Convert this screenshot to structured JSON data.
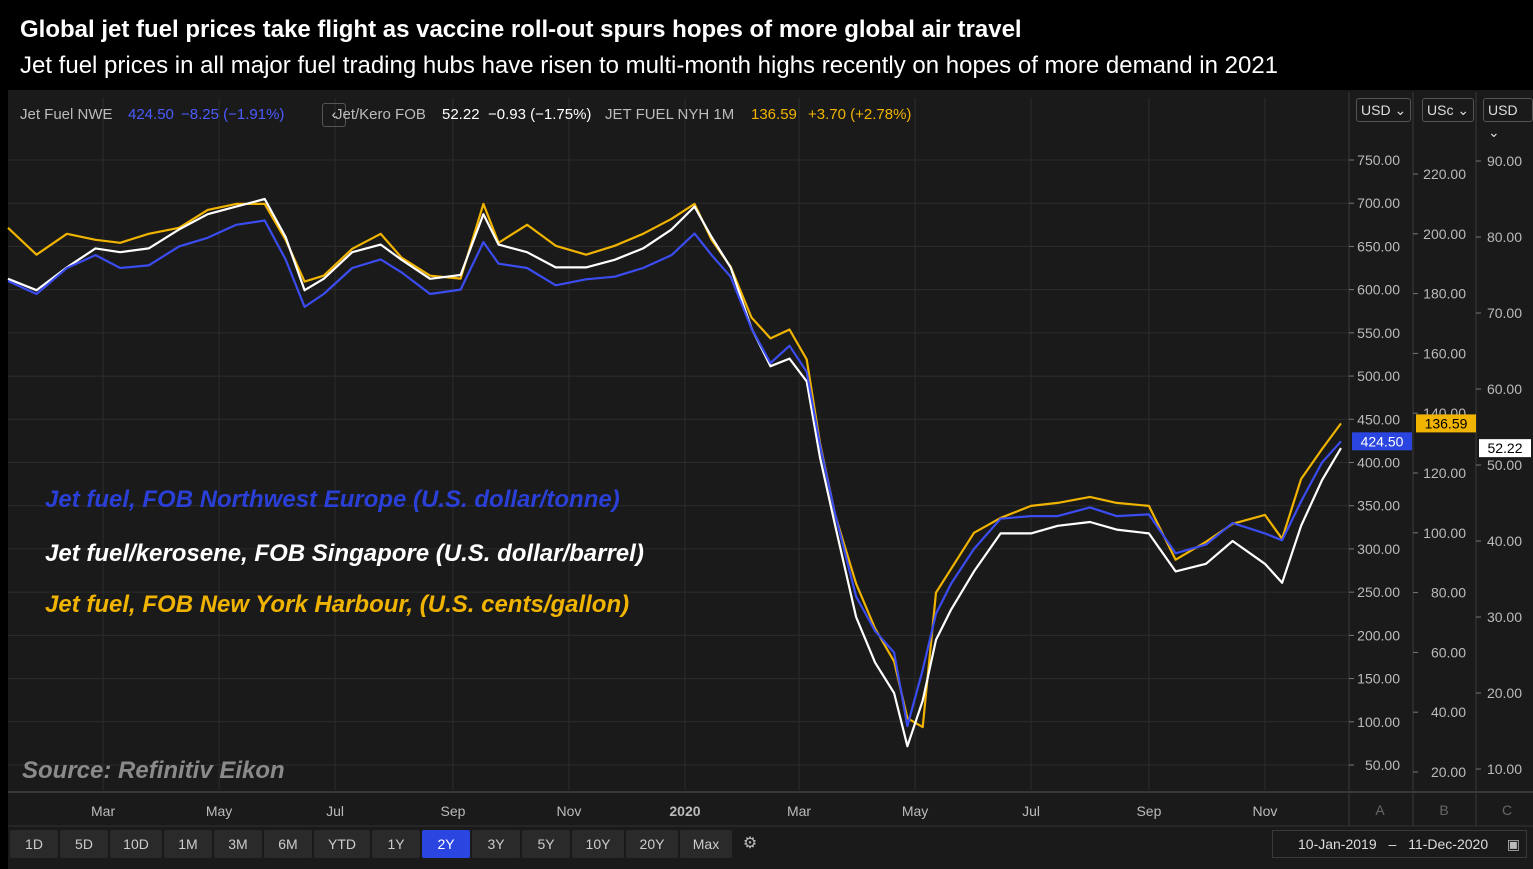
{
  "header": {
    "title": "Global jet fuel prices take flight as vaccine roll-out spurs hopes of more global air travel",
    "subtitle": "Jet fuel prices in all major fuel trading hubs have risen to multi-month highs recently on hopes of more demand in 2021"
  },
  "legend": {
    "nwe": {
      "name": "Jet Fuel NWE",
      "value": "424.50",
      "change": "−8.25 (−1.91%)"
    },
    "nav": "‹",
    "sg": {
      "name": "Jet/Kero FOB",
      "value": "52.22",
      "change": "−0.93 (−1.75%)"
    },
    "nyh": {
      "name": "JET FUEL NYH 1M",
      "value": "136.59",
      "change": "+3.70 (+2.78%)"
    }
  },
  "axes": {
    "A": {
      "unit": "USD",
      "ticks": [
        "750.00",
        "700.00",
        "650.00",
        "600.00",
        "550.00",
        "500.00",
        "450.00",
        "400.00",
        "350.00",
        "300.00",
        "250.00",
        "200.00",
        "150.00",
        "100.00",
        "50.00"
      ],
      "label": "A",
      "last": "424.50"
    },
    "B": {
      "unit": "USc",
      "ticks": [
        "220.00",
        "200.00",
        "180.00",
        "160.00",
        "140.00",
        "120.00",
        "100.00",
        "80.00",
        "60.00",
        "40.00",
        "20.00"
      ],
      "label": "B",
      "last": "136.59"
    },
    "C": {
      "unit": "USD",
      "ticks": [
        "90.00",
        "80.00",
        "70.00",
        "60.00",
        "50.00",
        "40.00",
        "30.00",
        "20.00",
        "10.00"
      ],
      "label": "C",
      "last": "52.22"
    },
    "x_ticks": [
      "Mar",
      "May",
      "Jul",
      "Sep",
      "Nov",
      "2020",
      "Mar",
      "May",
      "Jul",
      "Sep",
      "Nov"
    ]
  },
  "annotations": {
    "nwe": "Jet fuel, FOB Northwest Europe (U.S. dollar/tonne)",
    "sg": "Jet fuel/kerosene, FOB Singapore (U.S. dollar/barrel)",
    "nyh": "Jet fuel, FOB New York Harbour, (U.S. cents/gallon)",
    "source": "Source: Refinitiv Eikon"
  },
  "toolbar": {
    "ranges": [
      "1D",
      "5D",
      "10D",
      "1M",
      "3M",
      "6M",
      "YTD",
      "1Y",
      "2Y",
      "3Y",
      "5Y",
      "10Y",
      "20Y",
      "Max"
    ],
    "active_range": "2Y",
    "date_from": "10-Jan-2019",
    "dash": "–",
    "date_to": "11-Dec-2020"
  },
  "colors": {
    "nwe": "#3b4cf0",
    "sg": "#ffffff",
    "nyh": "#f0b400",
    "nwe_text": "#2a3fd6",
    "nyh_text": "#f0b400"
  },
  "chart_data": {
    "type": "line",
    "x_type": "date",
    "x_range": [
      "2019-01-10",
      "2020-12-11"
    ],
    "series": [
      {
        "name": "Jet Fuel NWE",
        "unit": "U.S. dollar/tonne",
        "axis": "A",
        "ylim": [
          30,
          800
        ],
        "points": [
          [
            "2019-01-10",
            610
          ],
          [
            "2019-01-25",
            595
          ],
          [
            "2019-02-10",
            625
          ],
          [
            "2019-02-25",
            640
          ],
          [
            "2019-03-10",
            625
          ],
          [
            "2019-03-25",
            628
          ],
          [
            "2019-04-10",
            650
          ],
          [
            "2019-04-25",
            660
          ],
          [
            "2019-05-10",
            675
          ],
          [
            "2019-05-25",
            680
          ],
          [
            "2019-06-05",
            635
          ],
          [
            "2019-06-15",
            580
          ],
          [
            "2019-06-25",
            595
          ],
          [
            "2019-07-10",
            625
          ],
          [
            "2019-07-25",
            635
          ],
          [
            "2019-08-05",
            620
          ],
          [
            "2019-08-20",
            595
          ],
          [
            "2019-09-05",
            600
          ],
          [
            "2019-09-17",
            655
          ],
          [
            "2019-09-25",
            630
          ],
          [
            "2019-10-10",
            625
          ],
          [
            "2019-10-25",
            605
          ],
          [
            "2019-11-10",
            612
          ],
          [
            "2019-11-25",
            615
          ],
          [
            "2019-12-10",
            625
          ],
          [
            "2019-12-25",
            640
          ],
          [
            "2020-01-06",
            665
          ],
          [
            "2020-01-15",
            640
          ],
          [
            "2020-01-25",
            615
          ],
          [
            "2020-02-05",
            555
          ],
          [
            "2020-02-15",
            515
          ],
          [
            "2020-02-25",
            535
          ],
          [
            "2020-03-05",
            505
          ],
          [
            "2020-03-12",
            420
          ],
          [
            "2020-03-20",
            340
          ],
          [
            "2020-03-31",
            245
          ],
          [
            "2020-04-10",
            205
          ],
          [
            "2020-04-20",
            180
          ],
          [
            "2020-04-27",
            95
          ],
          [
            "2020-05-05",
            160
          ],
          [
            "2020-05-12",
            225
          ],
          [
            "2020-05-20",
            260
          ],
          [
            "2020-06-01",
            300
          ],
          [
            "2020-06-15",
            335
          ],
          [
            "2020-07-01",
            338
          ],
          [
            "2020-07-15",
            338
          ],
          [
            "2020-08-01",
            348
          ],
          [
            "2020-08-15",
            338
          ],
          [
            "2020-09-01",
            340
          ],
          [
            "2020-09-15",
            295
          ],
          [
            "2020-10-01",
            305
          ],
          [
            "2020-10-15",
            330
          ],
          [
            "2020-11-01",
            318
          ],
          [
            "2020-11-10",
            310
          ],
          [
            "2020-11-20",
            355
          ],
          [
            "2020-12-01",
            400
          ],
          [
            "2020-12-11",
            424.5
          ]
        ]
      },
      {
        "name": "Jet/Kero FOB",
        "unit": "U.S. dollar/barrel",
        "axis": "C",
        "ylim": [
          5,
          95
        ],
        "points": [
          [
            "2019-01-10",
            74.5
          ],
          [
            "2019-01-25",
            73
          ],
          [
            "2019-02-10",
            76
          ],
          [
            "2019-02-25",
            78.5
          ],
          [
            "2019-03-10",
            78
          ],
          [
            "2019-03-25",
            78.5
          ],
          [
            "2019-04-10",
            81
          ],
          [
            "2019-04-25",
            83
          ],
          [
            "2019-05-10",
            84
          ],
          [
            "2019-05-25",
            85
          ],
          [
            "2019-06-05",
            80
          ],
          [
            "2019-06-15",
            73
          ],
          [
            "2019-06-25",
            74.5
          ],
          [
            "2019-07-10",
            78
          ],
          [
            "2019-07-25",
            79
          ],
          [
            "2019-08-05",
            77
          ],
          [
            "2019-08-20",
            74.5
          ],
          [
            "2019-09-05",
            75
          ],
          [
            "2019-09-17",
            83
          ],
          [
            "2019-09-25",
            79
          ],
          [
            "2019-10-10",
            78
          ],
          [
            "2019-10-25",
            76
          ],
          [
            "2019-11-10",
            76
          ],
          [
            "2019-11-25",
            77
          ],
          [
            "2019-12-10",
            78.5
          ],
          [
            "2019-12-25",
            81
          ],
          [
            "2020-01-06",
            84
          ],
          [
            "2020-01-15",
            80
          ],
          [
            "2020-01-25",
            76
          ],
          [
            "2020-02-05",
            68
          ],
          [
            "2020-02-15",
            63
          ],
          [
            "2020-02-25",
            64
          ],
          [
            "2020-03-05",
            61
          ],
          [
            "2020-03-12",
            51
          ],
          [
            "2020-03-20",
            42
          ],
          [
            "2020-03-31",
            30
          ],
          [
            "2020-04-10",
            24
          ],
          [
            "2020-04-20",
            20
          ],
          [
            "2020-04-27",
            13
          ],
          [
            "2020-05-05",
            19
          ],
          [
            "2020-05-12",
            27
          ],
          [
            "2020-05-20",
            31
          ],
          [
            "2020-06-01",
            36
          ],
          [
            "2020-06-15",
            41
          ],
          [
            "2020-07-01",
            41
          ],
          [
            "2020-07-15",
            42
          ],
          [
            "2020-08-01",
            42.5
          ],
          [
            "2020-08-15",
            41.5
          ],
          [
            "2020-09-01",
            41
          ],
          [
            "2020-09-15",
            36
          ],
          [
            "2020-10-01",
            37
          ],
          [
            "2020-10-15",
            40
          ],
          [
            "2020-11-01",
            37
          ],
          [
            "2020-11-10",
            34.5
          ],
          [
            "2020-11-20",
            42
          ],
          [
            "2020-12-01",
            48
          ],
          [
            "2020-12-11",
            52.22
          ]
        ]
      },
      {
        "name": "JET FUEL NYH 1M",
        "unit": "U.S. cents/gallon",
        "axis": "B",
        "ylim": [
          15,
          235
        ],
        "points": [
          [
            "2019-01-10",
            202
          ],
          [
            "2019-01-25",
            193
          ],
          [
            "2019-02-10",
            200
          ],
          [
            "2019-02-25",
            198
          ],
          [
            "2019-03-10",
            197
          ],
          [
            "2019-03-25",
            200
          ],
          [
            "2019-04-10",
            202
          ],
          [
            "2019-04-25",
            208
          ],
          [
            "2019-05-10",
            210
          ],
          [
            "2019-05-25",
            210
          ],
          [
            "2019-06-05",
            198
          ],
          [
            "2019-06-15",
            184
          ],
          [
            "2019-06-25",
            186
          ],
          [
            "2019-07-10",
            195
          ],
          [
            "2019-07-25",
            200
          ],
          [
            "2019-08-05",
            192
          ],
          [
            "2019-08-20",
            186
          ],
          [
            "2019-09-05",
            185
          ],
          [
            "2019-09-17",
            210
          ],
          [
            "2019-09-25",
            197
          ],
          [
            "2019-10-10",
            203
          ],
          [
            "2019-10-25",
            196
          ],
          [
            "2019-11-10",
            193
          ],
          [
            "2019-11-25",
            196
          ],
          [
            "2019-12-10",
            200
          ],
          [
            "2019-12-25",
            205
          ],
          [
            "2020-01-06",
            210
          ],
          [
            "2020-01-15",
            198
          ],
          [
            "2020-01-25",
            189
          ],
          [
            "2020-02-05",
            172
          ],
          [
            "2020-02-15",
            165
          ],
          [
            "2020-02-25",
            168
          ],
          [
            "2020-03-05",
            158
          ],
          [
            "2020-03-12",
            130
          ],
          [
            "2020-03-20",
            106
          ],
          [
            "2020-03-31",
            83
          ],
          [
            "2020-04-10",
            68
          ],
          [
            "2020-04-20",
            57
          ],
          [
            "2020-04-27",
            38
          ],
          [
            "2020-05-05",
            35
          ],
          [
            "2020-05-12",
            80
          ],
          [
            "2020-05-20",
            88
          ],
          [
            "2020-06-01",
            100
          ],
          [
            "2020-06-15",
            105
          ],
          [
            "2020-07-01",
            109
          ],
          [
            "2020-07-15",
            110
          ],
          [
            "2020-08-01",
            112
          ],
          [
            "2020-08-15",
            110
          ],
          [
            "2020-09-01",
            109
          ],
          [
            "2020-09-15",
            91
          ],
          [
            "2020-10-01",
            97
          ],
          [
            "2020-10-15",
            103
          ],
          [
            "2020-11-01",
            106
          ],
          [
            "2020-11-10",
            98
          ],
          [
            "2020-11-20",
            118
          ],
          [
            "2020-12-01",
            128
          ],
          [
            "2020-12-11",
            136.59
          ]
        ]
      }
    ]
  }
}
